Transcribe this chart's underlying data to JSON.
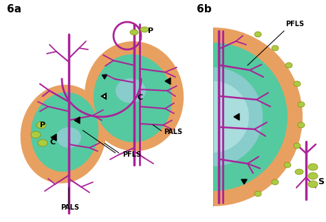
{
  "bg_color": "#ffffff",
  "colors": {
    "orange": "#E8A060",
    "green": "#55C9A0",
    "blue": "#88CCCC",
    "magenta": "#AA2299",
    "yellow": "#AACC44",
    "black": "#000000",
    "white": "#ffffff"
  },
  "labels": {
    "6a": "6a",
    "6b": "6b",
    "P_left": "P",
    "P_top": "P",
    "C_left": "C",
    "C_right": "C",
    "PALS_bottom": "PALS",
    "PALS_right": "PALS",
    "PFLS": "PFLS",
    "S": "S",
    "PFLS_6b": "PFLS"
  }
}
